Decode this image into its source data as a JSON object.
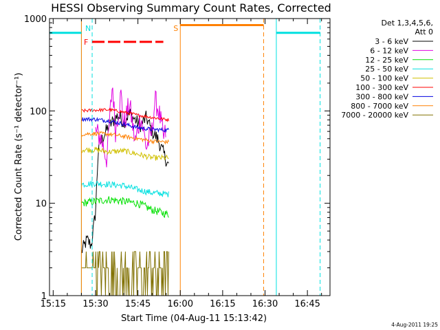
{
  "chart_data": {
    "type": "line",
    "title": "HESSI Observing Summary Count Rates, Corrected",
    "xlabel": "Start Time (04-Aug-11 15:13:42)",
    "ylabel": "Corrected Count Rate (s⁻¹ detector⁻¹)",
    "yscale": "log",
    "xlim": [
      "15:13:42",
      "16:53:00"
    ],
    "ylim": [
      1,
      1000
    ],
    "x_ticks": [
      "15:15",
      "15:30",
      "15:45",
      "16:00",
      "16:15",
      "16:30",
      "16:45"
    ],
    "x_ticks_minutes_after_15": [
      15,
      30,
      45,
      60,
      75,
      90,
      105
    ],
    "y_ticks": [
      {
        "value": 1,
        "label": "1"
      },
      {
        "value": 10,
        "label": "10"
      },
      {
        "value": 100,
        "label": "100"
      },
      {
        "value": 1000,
        "label": "1000"
      }
    ],
    "legend": {
      "placement": "right",
      "header_line1": "Det 1,3,4,5,6,",
      "header_line2": "Att 0",
      "entries": [
        {
          "label": "3 - 6 keV",
          "color": "#000000"
        },
        {
          "label": "6 - 12 keV",
          "color": "#e000e0"
        },
        {
          "label": "12 - 25 keV",
          "color": "#00e000"
        },
        {
          "label": "25 - 50 keV",
          "color": "#00e0e0"
        },
        {
          "label": "50 - 100 keV",
          "color": "#d0c000"
        },
        {
          "label": "100 - 300 keV",
          "color": "#ff0000"
        },
        {
          "label": "300 - 800 keV",
          "color": "#0000e0"
        },
        {
          "label": "800 - 7000 keV",
          "color": "#ff8000"
        },
        {
          "label": "7000 - 20000 keV",
          "color": "#807000"
        }
      ]
    },
    "series": [
      {
        "name": "3 - 6 keV",
        "color": "#000000",
        "x_start": 25.0,
        "x_end": 56.0,
        "points": [
          [
            25,
            3
          ],
          [
            27,
            4
          ],
          [
            28.5,
            3.5
          ],
          [
            30,
            8
          ],
          [
            31,
            40
          ],
          [
            33,
            55
          ],
          [
            35,
            70
          ],
          [
            38,
            90
          ],
          [
            40,
            75
          ],
          [
            42,
            95
          ],
          [
            44,
            80
          ],
          [
            46,
            70
          ],
          [
            48,
            85
          ],
          [
            50,
            60
          ],
          [
            52,
            50
          ],
          [
            54,
            35
          ],
          [
            56,
            25
          ]
        ]
      },
      {
        "name": "6 - 12 keV",
        "color": "#e000e0",
        "x_start": 30.0,
        "x_end": 55.0,
        "points": [
          [
            30,
            60
          ],
          [
            32,
            50
          ],
          [
            34,
            30
          ],
          [
            35,
            80
          ],
          [
            36,
            200
          ],
          [
            37,
            60
          ],
          [
            39,
            150
          ],
          [
            40,
            70
          ],
          [
            42,
            120
          ],
          [
            44,
            45
          ],
          [
            46,
            90
          ],
          [
            48,
            40
          ],
          [
            50,
            60
          ],
          [
            51,
            130
          ],
          [
            52,
            110
          ],
          [
            53,
            80
          ],
          [
            54,
            50
          ],
          [
            55,
            60
          ]
        ]
      },
      {
        "name": "12 - 25 keV",
        "color": "#00e000",
        "x_start": 25.0,
        "x_end": 56.0,
        "points": [
          [
            25,
            10
          ],
          [
            30,
            10.5
          ],
          [
            35,
            11
          ],
          [
            40,
            10.5
          ],
          [
            45,
            10
          ],
          [
            50,
            8.5
          ],
          [
            56,
            7.5
          ]
        ]
      },
      {
        "name": "25 - 50 keV",
        "color": "#00e0e0",
        "x_start": 25.0,
        "x_end": 56.0,
        "points": [
          [
            25,
            16
          ],
          [
            30,
            16.5
          ],
          [
            35,
            16
          ],
          [
            40,
            15.5
          ],
          [
            45,
            14
          ],
          [
            50,
            13
          ],
          [
            56,
            12.5
          ]
        ]
      },
      {
        "name": "50 - 100 keV",
        "color": "#d0c000",
        "x_start": 25.0,
        "x_end": 56.0,
        "points": [
          [
            25,
            38
          ],
          [
            30,
            38
          ],
          [
            35,
            36
          ],
          [
            40,
            37
          ],
          [
            45,
            34
          ],
          [
            50,
            31
          ],
          [
            56,
            31
          ]
        ]
      },
      {
        "name": "100 - 300 keV",
        "color": "#ff0000",
        "x_start": 25.0,
        "x_end": 56.0,
        "points": [
          [
            25,
            100
          ],
          [
            30,
            102
          ],
          [
            35,
            103
          ],
          [
            40,
            97
          ],
          [
            45,
            90
          ],
          [
            50,
            85
          ],
          [
            56,
            80
          ]
        ]
      },
      {
        "name": "300 - 800 keV",
        "color": "#0000e0",
        "x_start": 25.0,
        "x_end": 56.0,
        "points": [
          [
            25,
            82
          ],
          [
            30,
            81
          ],
          [
            35,
            78
          ],
          [
            40,
            72
          ],
          [
            45,
            66
          ],
          [
            50,
            63
          ],
          [
            56,
            62
          ]
        ]
      },
      {
        "name": "800 - 7000 keV",
        "color": "#ff8000",
        "x_start": 25.0,
        "x_end": 56.0,
        "points": [
          [
            25,
            56
          ],
          [
            30,
            57
          ],
          [
            35,
            56
          ],
          [
            40,
            53
          ],
          [
            45,
            50
          ],
          [
            50,
            47
          ],
          [
            56,
            46
          ]
        ]
      },
      {
        "name": "7000 - 20000 keV",
        "color": "#807000",
        "x_start": 25.0,
        "x_end": 56.0,
        "points": [
          [
            25,
            2
          ],
          [
            30,
            3
          ],
          [
            35,
            2
          ],
          [
            40,
            1.6
          ],
          [
            45,
            2
          ],
          [
            50,
            1.7
          ],
          [
            56,
            1.5
          ]
        ]
      }
    ],
    "annotations": [
      {
        "type": "vline",
        "x": 25.0,
        "color": "#00e0e0",
        "style": "solid"
      },
      {
        "type": "vline",
        "x": 28.8,
        "color": "#00e0e0",
        "style": "dashed",
        "label": "N",
        "label_color": "#00e0e0"
      },
      {
        "type": "vline",
        "x": 25.0,
        "color": "#ff8000",
        "style": "solid"
      },
      {
        "type": "vline",
        "x": 60.0,
        "color": "#ff8000",
        "style": "solid",
        "label": "S",
        "label_color": "#ff8000"
      },
      {
        "type": "vline",
        "x": 89.5,
        "color": "#ff8000",
        "style": "dashed"
      },
      {
        "type": "vline",
        "x": 94.0,
        "color": "#00e0e0",
        "style": "solid"
      },
      {
        "type": "vline",
        "x": 109.5,
        "color": "#00e0e0",
        "style": "dashed"
      },
      {
        "type": "hbar",
        "x0": 13.7,
        "x1": 25.0,
        "y": 700,
        "color": "#00e0e0",
        "style": "solid"
      },
      {
        "type": "hbar",
        "x0": 94.0,
        "x1": 109.5,
        "y": 700,
        "color": "#00e0e0",
        "style": "solid"
      },
      {
        "type": "hbar",
        "x0": 60.0,
        "x1": 89.5,
        "y": 850,
        "color": "#ff8000",
        "style": "solid"
      },
      {
        "type": "hbar",
        "x0": 28.8,
        "x1": 54.0,
        "y": 560,
        "color": "#ff0000",
        "style": "dashed",
        "label": "F",
        "label_color": "#ff0000"
      }
    ],
    "footer_date": "4-Aug-2011 19:25"
  }
}
